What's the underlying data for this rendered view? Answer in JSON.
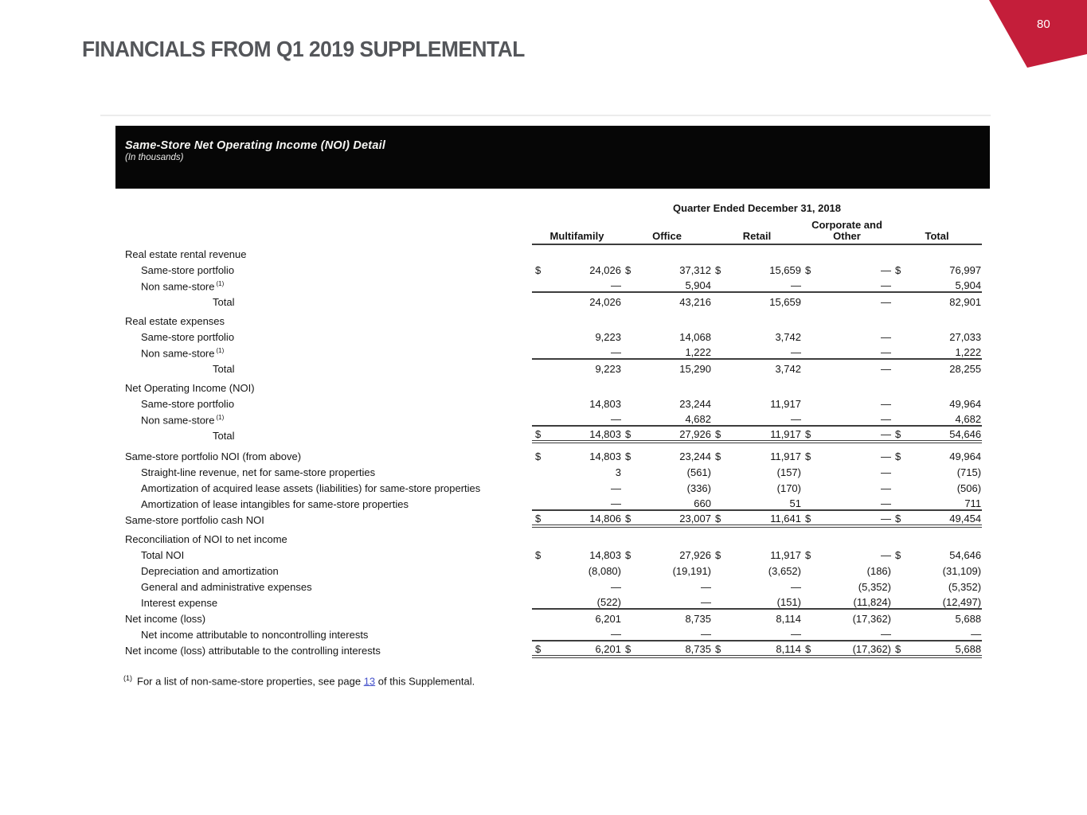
{
  "slide": {
    "title": "FINANCIALS FROM Q1 2019 SUPPLEMENTAL",
    "page_number": "80",
    "accent_color": "#C41E3A",
    "title_color": "#54565A"
  },
  "banner": {
    "title": "Same-Store Net Operating Income (NOI) Detail",
    "subtitle": "(In thousands)"
  },
  "table": {
    "period_header": "Quarter Ended December 31, 2018",
    "columns": [
      "Multifamily",
      "Office",
      "Retail",
      "Corporate and Other",
      "Total"
    ],
    "rows": [
      {
        "label": "Real estate rental revenue",
        "indent": 0
      },
      {
        "label": "Same-store portfolio",
        "indent": 1,
        "dollar": true,
        "values": [
          "24,026",
          "37,312",
          "15,659",
          "—",
          "76,997"
        ]
      },
      {
        "label": "Non same-store",
        "sup": "(1)",
        "indent": 1,
        "values": [
          "—",
          "5,904",
          "—",
          "—",
          "5,904"
        ]
      },
      {
        "label": "Total",
        "indent": 3,
        "border": "total",
        "values": [
          "24,026",
          "43,216",
          "15,659",
          "—",
          "82,901"
        ]
      },
      {
        "label": "Real estate expenses",
        "indent": 0,
        "gap": true
      },
      {
        "label": "Same-store portfolio",
        "indent": 1,
        "values": [
          "9,223",
          "14,068",
          "3,742",
          "—",
          "27,033"
        ]
      },
      {
        "label": "Non same-store",
        "sup": "(1)",
        "indent": 1,
        "values": [
          "—",
          "1,222",
          "—",
          "—",
          "1,222"
        ]
      },
      {
        "label": "Total",
        "indent": 3,
        "border": "total",
        "values": [
          "9,223",
          "15,290",
          "3,742",
          "—",
          "28,255"
        ]
      },
      {
        "label": "Net Operating Income (NOI)",
        "indent": 0,
        "gap": true
      },
      {
        "label": "Same-store portfolio",
        "indent": 1,
        "values": [
          "14,803",
          "23,244",
          "11,917",
          "—",
          "49,964"
        ]
      },
      {
        "label": "Non same-store",
        "sup": "(1)",
        "indent": 1,
        "values": [
          "—",
          "4,682",
          "—",
          "—",
          "4,682"
        ]
      },
      {
        "label": "Total",
        "indent": 3,
        "dollar": true,
        "border": "grand",
        "values": [
          "14,803",
          "27,926",
          "11,917",
          "—",
          "54,646"
        ]
      },
      {
        "label": "Same-store portfolio NOI (from above)",
        "indent": 0,
        "dollar": true,
        "gap": true,
        "values": [
          "14,803",
          "23,244",
          "11,917",
          "—",
          "49,964"
        ]
      },
      {
        "label": "Straight-line revenue, net for same-store properties",
        "indent": 1,
        "values": [
          "3",
          "(561)",
          "(157)",
          "—",
          "(715)"
        ]
      },
      {
        "label": "Amortization of acquired lease assets (liabilities) for same-store properties",
        "indent": 1,
        "values": [
          "—",
          "(336)",
          "(170)",
          "—",
          "(506)"
        ]
      },
      {
        "label": "Amortization of lease intangibles for same-store properties",
        "indent": 1,
        "values": [
          "—",
          "660",
          "51",
          "—",
          "711"
        ]
      },
      {
        "label": "Same-store portfolio cash NOI",
        "indent": 0,
        "dollar": true,
        "border": "grand",
        "values": [
          "14,806",
          "23,007",
          "11,641",
          "—",
          "49,454"
        ]
      },
      {
        "label": "Reconciliation of NOI to net income",
        "indent": 0,
        "gap": true
      },
      {
        "label": "Total NOI",
        "indent": 1,
        "dollar": true,
        "values": [
          "14,803",
          "27,926",
          "11,917",
          "—",
          "54,646"
        ]
      },
      {
        "label": "Depreciation and amortization",
        "indent": 1,
        "values": [
          "(8,080)",
          "(19,191)",
          "(3,652)",
          "(186)",
          "(31,109)"
        ]
      },
      {
        "label": "General and administrative expenses",
        "indent": 1,
        "values": [
          "—",
          "—",
          "—",
          "(5,352)",
          "(5,352)"
        ]
      },
      {
        "label": "Interest expense",
        "indent": 1,
        "values": [
          "(522)",
          "—",
          "(151)",
          "(11,824)",
          "(12,497)"
        ]
      },
      {
        "label": "Net income (loss)",
        "indent": 0,
        "border": "total",
        "values": [
          "6,201",
          "8,735",
          "8,114",
          "(17,362)",
          "5,688"
        ]
      },
      {
        "label": "Net income attributable to noncontrolling interests",
        "indent": 1,
        "values": [
          "—",
          "—",
          "—",
          "—",
          "—"
        ]
      },
      {
        "label": "Net income (loss) attributable to the controlling interests",
        "indent": 0,
        "dollar": true,
        "border": "grand",
        "values": [
          "6,201",
          "8,735",
          "8,114",
          "(17,362)",
          "5,688"
        ]
      }
    ]
  },
  "footnote": {
    "sup": "(1)",
    "text_before": "For a list of non-same-store properties, see page ",
    "link": "13",
    "text_after": " of this Supplemental.",
    "link_color": "#4653CB"
  }
}
